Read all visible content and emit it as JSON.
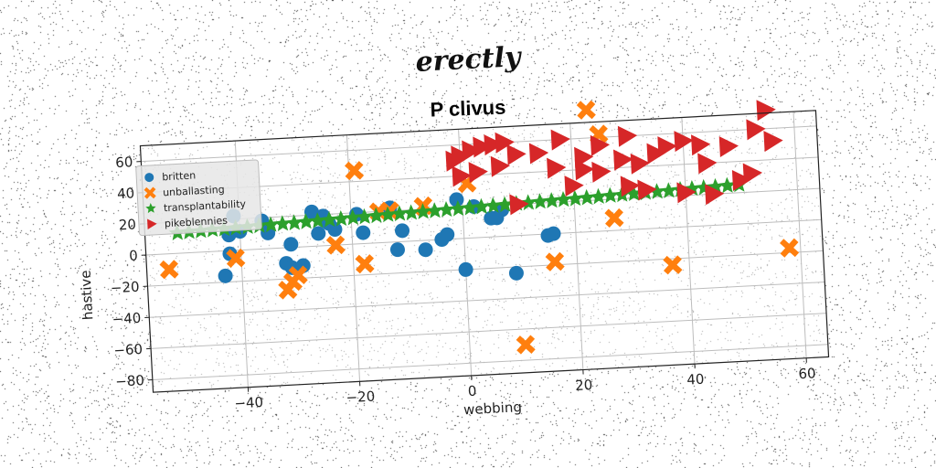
{
  "figure": {
    "suptitle": "erectly"
  },
  "chart_data": {
    "type": "scatter",
    "title": "P clivus",
    "xlabel": "webbing",
    "ylabel": "hastive",
    "xlim": [
      -57,
      64
    ],
    "ylim": [
      -88,
      70
    ],
    "xticks": [
      -40,
      -20,
      0,
      20,
      40,
      60
    ],
    "yticks": [
      -80,
      -60,
      -40,
      -20,
      0,
      20,
      40,
      60
    ],
    "grid": true,
    "legend_position": "top-left",
    "series": [
      {
        "name": "britten",
        "marker": "circle",
        "color": "#1f77b4",
        "x": [
          -41,
          -42,
          -40,
          -43,
          -42,
          -36,
          -35,
          -31,
          -32,
          -31,
          -29,
          -27,
          -25,
          -26,
          -24,
          -23,
          -19,
          -18,
          -13,
          -11,
          -12,
          -7,
          -4,
          -3,
          -1,
          0,
          2,
          5,
          6,
          7,
          9,
          15,
          16
        ],
        "y": [
          22,
          10,
          12,
          -16,
          -2,
          18,
          10,
          2,
          -10,
          -13,
          -12,
          22,
          19,
          8,
          14,
          10,
          19,
          7,
          22,
          7,
          -5,
          -6,
          0,
          3,
          25,
          -20,
          20,
          12,
          12,
          17,
          -24,
          -1,
          0
        ]
      },
      {
        "name": "unballasting",
        "marker": "x",
        "color": "#ff7f0e",
        "x": [
          -53,
          -41,
          -32,
          -31,
          -30,
          -23,
          -19,
          -18,
          -15,
          -13,
          -7,
          1,
          23,
          25,
          27,
          16,
          10,
          37,
          58
        ],
        "y": [
          -10,
          -5,
          -27,
          -22,
          -18,
          0,
          47,
          -13,
          20,
          20,
          22,
          35,
          78,
          62,
          8,
          -18,
          -70,
          -24,
          -17
        ]
      },
      {
        "name": "transplantability",
        "marker": "star",
        "color": "#2ca02c",
        "x": [
          -51.2,
          -49.1,
          -47.0,
          -44.9,
          -42.8,
          -40.7,
          -38.6,
          -36.5,
          -34.4,
          -32.3,
          -30.2,
          -28.1,
          -26.0,
          -23.9,
          -21.8,
          -19.7,
          -17.6,
          -15.5,
          -13.4,
          -11.3,
          -9.2,
          -7.1,
          -5.0,
          -2.9,
          -0.8,
          1.3,
          3.4,
          5.5,
          7.6,
          9.7,
          11.8,
          13.9,
          16.0,
          18.1,
          20.2,
          22.3,
          24.4,
          26.5,
          28.6,
          30.7,
          32.8,
          34.9,
          37.0,
          39.1,
          41.2,
          43.3,
          45.4,
          47.5,
          49.6
        ],
        "y": [
          13.0,
          13.3,
          13.5,
          13.8,
          14.0,
          14.3,
          14.5,
          14.8,
          15.0,
          15.3,
          15.5,
          15.8,
          16.0,
          16.3,
          16.5,
          16.8,
          17.0,
          17.3,
          17.5,
          17.8,
          18.0,
          18.3,
          18.5,
          18.8,
          19.0,
          19.3,
          19.5,
          19.8,
          20.0,
          20.3,
          20.5,
          20.8,
          21.0,
          21.3,
          21.5,
          21.8,
          22.0,
          22.3,
          22.5,
          22.8,
          23.0,
          23.3,
          23.5,
          23.8,
          24.0,
          24.3,
          24.5,
          24.8,
          25.0
        ]
      },
      {
        "name": "pikeblennies",
        "marker": "triangle-right",
        "color": "#d62728",
        "x": [
          -1,
          0,
          2,
          4,
          6,
          8,
          0,
          3,
          7,
          10,
          14,
          18,
          17,
          22,
          25,
          30,
          29,
          20,
          22,
          25,
          29,
          32,
          35,
          37,
          40,
          43,
          44,
          48,
          30,
          33,
          40,
          45,
          50,
          52,
          53,
          55,
          56,
          10
        ],
        "y": [
          50,
          53,
          56,
          58,
          59,
          60,
          40,
          42,
          45,
          52,
          52,
          60,
          42,
          48,
          55,
          60,
          45,
          30,
          40,
          38,
          45,
          42,
          48,
          52,
          55,
          52,
          40,
          50,
          28,
          25,
          22,
          20,
          28,
          32,
          60,
          72,
          52,
          20
        ]
      }
    ]
  }
}
